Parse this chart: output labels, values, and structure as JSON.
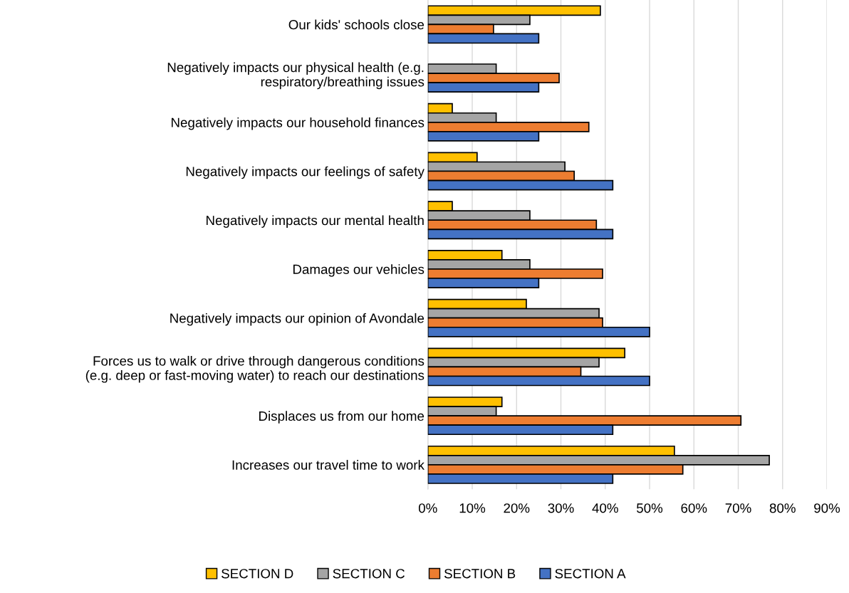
{
  "chart_data": {
    "type": "bar",
    "orientation": "horizontal",
    "categories": [
      "Our kids' schools close",
      "Negatively impacts our physical health (e.g.\nrespiratory/breathing issues",
      "Negatively impacts our household finances",
      "Negatively impacts our feelings of safety",
      "Negatively impacts our mental health",
      "Damages our vehicles",
      "Negatively impacts our opinion of Avondale",
      "Forces us to walk or drive through dangerous conditions\n(e.g. deep or fast-moving water) to reach our destinations",
      "Displaces us from our home",
      "Increases our travel time to work"
    ],
    "series": [
      {
        "name": "SECTION D",
        "color": "#ffc000",
        "values": [
          38.9,
          null,
          5.5,
          11.1,
          5.5,
          16.7,
          22.2,
          44.4,
          16.7,
          55.6
        ]
      },
      {
        "name": "SECTION C",
        "color": "#a5a5a5",
        "values": [
          23,
          15.4,
          15.4,
          30.9,
          23,
          23,
          38.6,
          38.6,
          15.4,
          77
        ]
      },
      {
        "name": "SECTION B",
        "color": "#ed7d31",
        "values": [
          14.8,
          29.6,
          36.3,
          33,
          38,
          39.4,
          39.4,
          34.5,
          70.6,
          57.5
        ]
      },
      {
        "name": "SECTION A",
        "color": "#4472c4",
        "values": [
          25,
          25,
          25,
          41.7,
          41.7,
          25,
          50,
          50,
          41.7,
          41.7
        ]
      }
    ],
    "xlim": [
      0,
      90
    ],
    "xticks": [
      {
        "value": 0,
        "label": "0%"
      },
      {
        "value": 10,
        "label": "10%"
      },
      {
        "value": 20,
        "label": "20%"
      },
      {
        "value": 30,
        "label": "30%"
      },
      {
        "value": 40,
        "label": "40%"
      },
      {
        "value": 50,
        "label": "50%"
      },
      {
        "value": 60,
        "label": "60%"
      },
      {
        "value": 70,
        "label": "70%"
      },
      {
        "value": 80,
        "label": "80%"
      },
      {
        "value": 90,
        "label": "90%"
      }
    ],
    "grid": "x",
    "legend": "bottom"
  }
}
